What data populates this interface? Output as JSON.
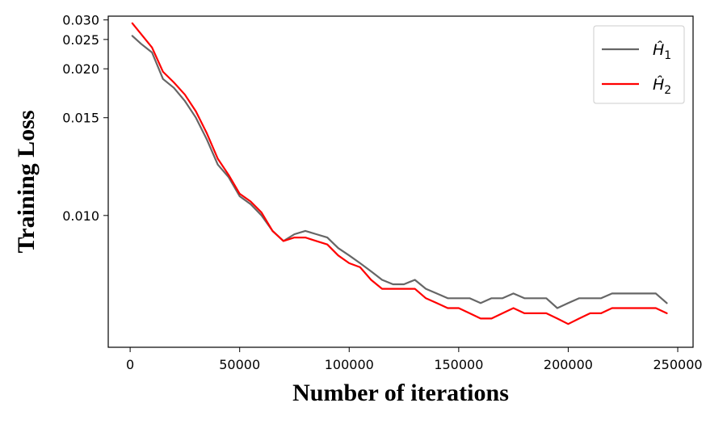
{
  "chart_data": {
    "type": "line",
    "xlabel": "Number of iterations",
    "ylabel": "Training Loss",
    "xlim": [
      -10000,
      257000
    ],
    "ylim": [
      0.0069,
      0.0312
    ],
    "yscale": "reciprocal",
    "xticks": [
      0,
      50000,
      100000,
      150000,
      200000,
      250000
    ],
    "xtick_labels": [
      "0",
      "50000",
      "100000",
      "150000",
      "200000",
      "250000"
    ],
    "yticks": [
      0.01,
      0.015,
      0.02,
      0.025,
      0.03
    ],
    "ytick_labels": [
      "0.010",
      "0.015",
      "0.020",
      "0.025",
      "0.030"
    ],
    "grid": false,
    "legend_position": "top-right",
    "series": [
      {
        "name": "Ĥ1",
        "legend_main": "Ĥ",
        "legend_sub": "1",
        "color": "#666666",
        "x": [
          1000,
          5000,
          10000,
          15000,
          20000,
          25000,
          30000,
          35000,
          40000,
          45000,
          50000,
          55000,
          60000,
          65000,
          70000,
          75000,
          80000,
          85000,
          90000,
          95000,
          100000,
          105000,
          110000,
          115000,
          120000,
          125000,
          130000,
          135000,
          140000,
          145000,
          150000,
          155000,
          160000,
          165000,
          170000,
          175000,
          180000,
          185000,
          190000,
          195000,
          200000,
          205000,
          210000,
          215000,
          220000,
          225000,
          230000,
          235000,
          240000,
          245000
        ],
        "y": [
          0.0258,
          0.0241,
          0.0225,
          0.0187,
          0.0177,
          0.0164,
          0.015,
          0.0135,
          0.0121,
          0.0115,
          0.0107,
          0.0104,
          0.01,
          0.0095,
          0.0092,
          0.0094,
          0.0095,
          0.0094,
          0.0093,
          0.009,
          0.0088,
          0.0086,
          0.0084,
          0.0082,
          0.0081,
          0.0081,
          0.0082,
          0.008,
          0.0079,
          0.0078,
          0.0078,
          0.0078,
          0.0077,
          0.0078,
          0.0078,
          0.0079,
          0.0078,
          0.0078,
          0.0078,
          0.0076,
          0.0077,
          0.0078,
          0.0078,
          0.0078,
          0.0079,
          0.0079,
          0.0079,
          0.0079,
          0.0079,
          0.0077
        ]
      },
      {
        "name": "Ĥ2",
        "legend_main": "Ĥ",
        "legend_sub": "2",
        "color": "#ff0000",
        "x": [
          1000,
          5000,
          10000,
          15000,
          20000,
          25000,
          30000,
          35000,
          40000,
          45000,
          50000,
          55000,
          60000,
          65000,
          70000,
          75000,
          80000,
          85000,
          90000,
          95000,
          100000,
          105000,
          110000,
          115000,
          120000,
          125000,
          130000,
          135000,
          140000,
          145000,
          150000,
          155000,
          160000,
          165000,
          170000,
          175000,
          180000,
          185000,
          190000,
          195000,
          200000,
          205000,
          210000,
          215000,
          220000,
          225000,
          230000,
          235000,
          240000,
          245000
        ],
        "y": [
          0.029,
          0.0262,
          0.0234,
          0.0196,
          0.0183,
          0.017,
          0.0155,
          0.0139,
          0.0124,
          0.0116,
          0.0108,
          0.0105,
          0.0101,
          0.0095,
          0.0092,
          0.0093,
          0.0093,
          0.0092,
          0.0091,
          0.0088,
          0.0086,
          0.0085,
          0.0082,
          0.008,
          0.008,
          0.008,
          0.008,
          0.0078,
          0.0077,
          0.0076,
          0.0076,
          0.0075,
          0.0074,
          0.0074,
          0.0075,
          0.0076,
          0.0075,
          0.0075,
          0.0075,
          0.0074,
          0.0073,
          0.0074,
          0.0075,
          0.0075,
          0.0076,
          0.0076,
          0.0076,
          0.0076,
          0.0076,
          0.0075
        ]
      }
    ]
  }
}
